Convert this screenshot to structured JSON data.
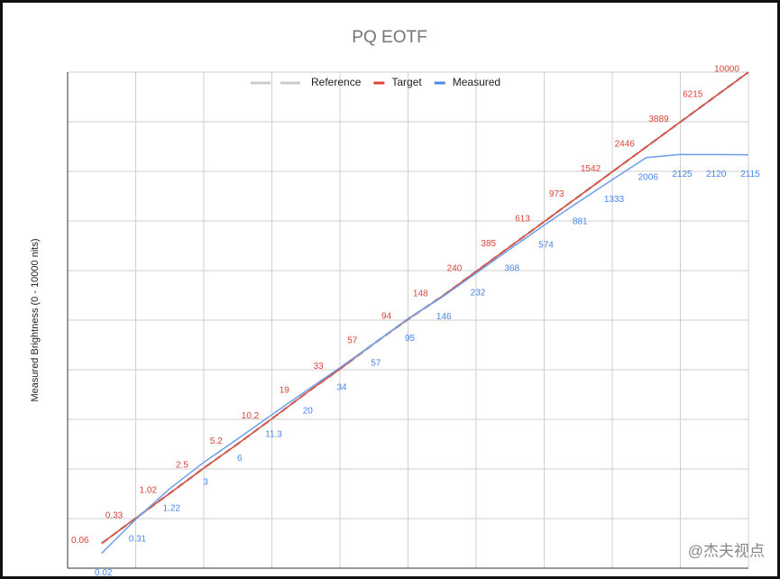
{
  "chart_data": {
    "type": "line",
    "title": "PQ EOTF",
    "y_label": "Measured Brightness  (0 - 10000 nits)",
    "y_scale": "pq",
    "ylim": [
      0,
      10000
    ],
    "grid": true,
    "legend": "top",
    "watermark": "@杰夫视点",
    "categories": [
      null,
      null,
      null,
      null,
      null,
      null,
      null,
      null,
      null,
      null,
      null,
      null,
      null,
      null,
      null,
      null,
      null,
      null,
      null,
      null
    ],
    "series": [
      {
        "name": "Reference",
        "color": "#cccccc",
        "labels": false,
        "values": [
          0.06,
          0.33,
          1.02,
          2.5,
          5.2,
          10.2,
          19,
          33,
          57,
          94,
          148,
          240,
          385,
          613,
          973,
          1542,
          2446,
          3889,
          6215,
          10000
        ]
      },
      {
        "name": "Target",
        "color": "#db4437",
        "labels": true,
        "values": [
          0.06,
          0.33,
          1.02,
          2.5,
          5.2,
          10.2,
          19,
          33,
          57,
          94,
          148,
          240,
          385,
          613,
          973,
          1542,
          2446,
          3889,
          6215,
          10000
        ]
      },
      {
        "name": "Measured",
        "color": "#4a86e8",
        "labels": true,
        "values": [
          0.02,
          0.31,
          1.22,
          3,
          6,
          11.3,
          20,
          34,
          57,
          95,
          146,
          232,
          368,
          574,
          881,
          1333,
          2006,
          2125,
          2120,
          2115
        ]
      }
    ]
  }
}
